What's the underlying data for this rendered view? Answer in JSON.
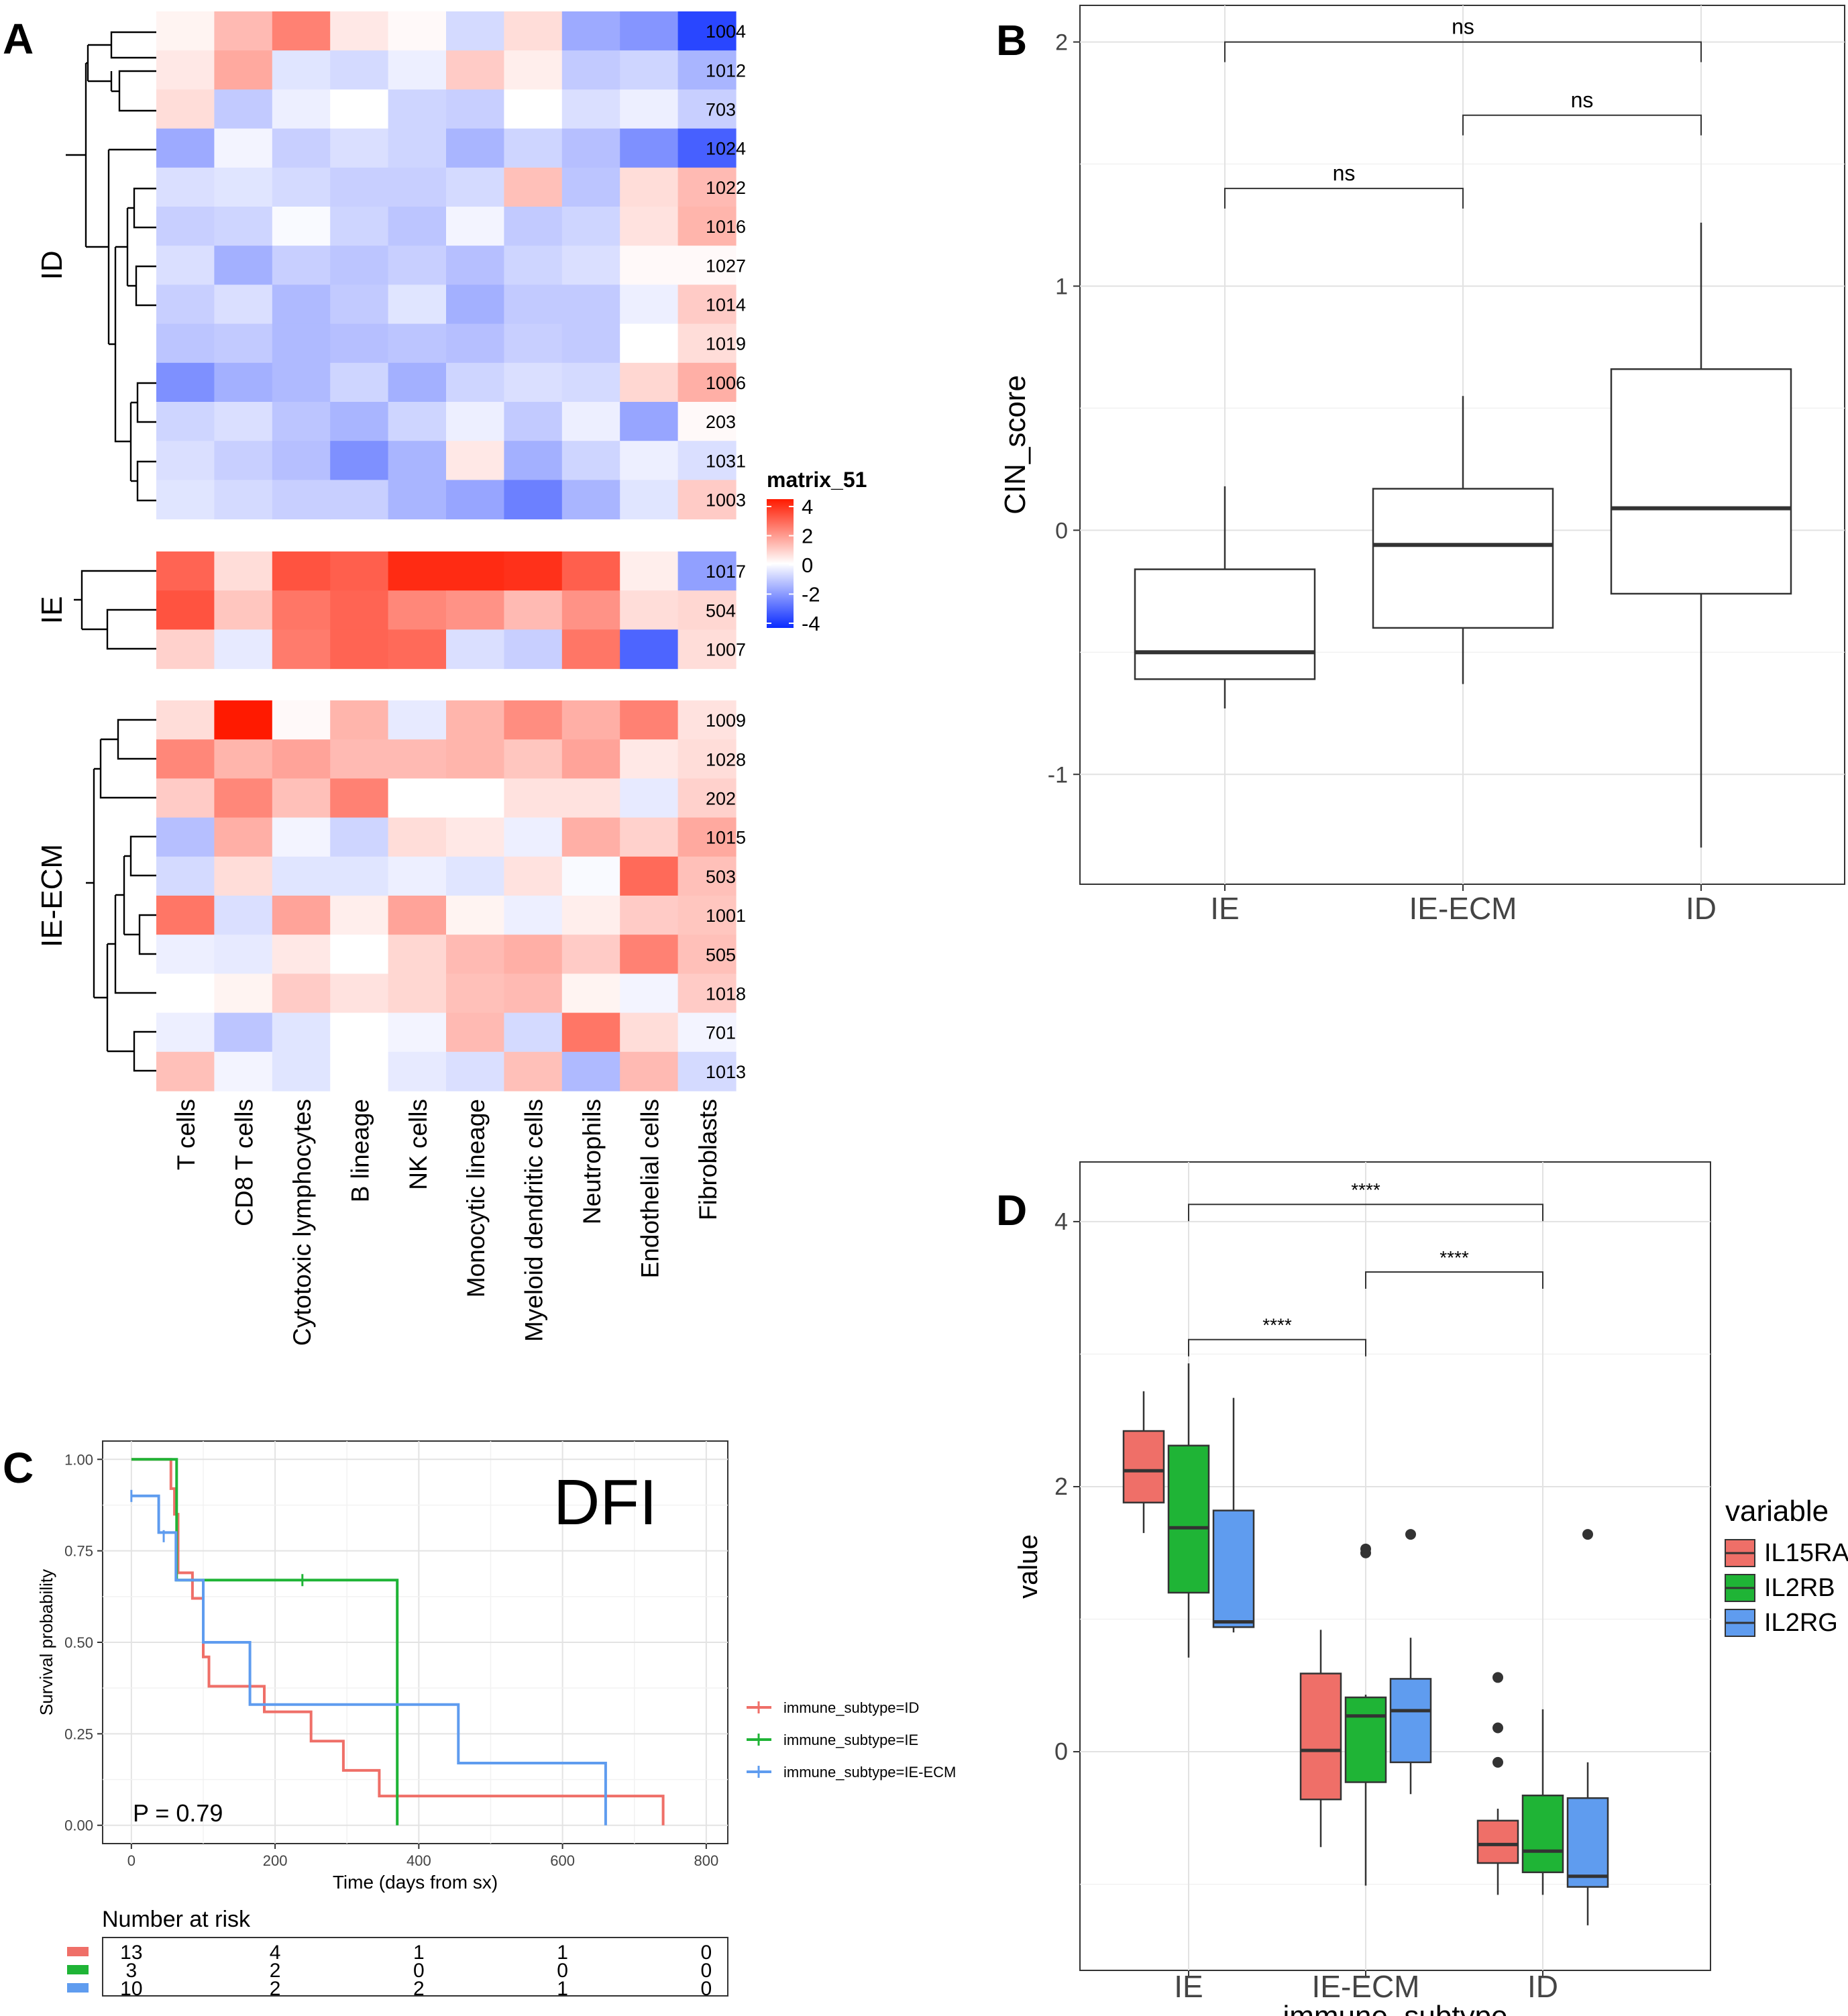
{
  "panel_labels": {
    "a": "A",
    "b": "B",
    "c": "C",
    "d": "D"
  },
  "chart_data": [
    {
      "panel": "A",
      "type": "heatmap",
      "legend_title": "matrix_51",
      "legend_ticks": [
        "4",
        "2",
        "0",
        "-2",
        "-4"
      ],
      "value_range": [
        -4,
        4
      ],
      "columns": [
        "T cells",
        "CD8 T cells",
        "Cytotoxic lymphocytes",
        "B lineage",
        "NK cells",
        "Monocytic lineage",
        "Myeloid dendritic cells",
        "Neutrophils",
        "Endothelial cells",
        "Fibroblasts"
      ],
      "groups": [
        {
          "name": "ID",
          "rows": [
            "1004",
            "1012",
            "703",
            "1024",
            "1022",
            "1016",
            "1027",
            "1014",
            "1019",
            "1006",
            "203",
            "1031",
            "1003"
          ],
          "values": [
            [
              0.2,
              1.2,
              2.2,
              0.4,
              0.1,
              -0.7,
              0.6,
              -1.6,
              -2.0,
              -3.5
            ],
            [
              0.4,
              1.5,
              -0.5,
              -0.7,
              -0.3,
              0.9,
              0.3,
              -1.0,
              -0.8,
              -1.4
            ],
            [
              0.6,
              -1.0,
              -0.3,
              0.0,
              -0.8,
              -0.9,
              0.0,
              -0.6,
              -0.3,
              -0.9
            ],
            [
              -1.6,
              -0.2,
              -0.9,
              -0.6,
              -0.8,
              -1.4,
              -0.8,
              -1.2,
              -2.1,
              -3.0
            ],
            [
              -0.6,
              -0.5,
              -0.7,
              -0.9,
              -0.9,
              -0.7,
              1.1,
              -1.1,
              0.6,
              1.2
            ],
            [
              -0.9,
              -0.8,
              -0.1,
              -0.8,
              -1.1,
              -0.2,
              -1.0,
              -0.8,
              0.5,
              1.3
            ],
            [
              -0.6,
              -1.5,
              -0.9,
              -1.1,
              -0.9,
              -1.2,
              -0.8,
              -0.6,
              0.1,
              0.1
            ],
            [
              -0.9,
              -0.6,
              -1.3,
              -1.0,
              -0.5,
              -1.5,
              -1.0,
              -1.0,
              -0.3,
              0.9
            ],
            [
              -1.1,
              -1.0,
              -1.3,
              -1.2,
              -1.1,
              -1.2,
              -0.9,
              -1.0,
              0.0,
              0.6
            ],
            [
              -2.1,
              -1.5,
              -1.3,
              -0.8,
              -1.5,
              -0.8,
              -0.6,
              -0.7,
              0.7,
              1.4
            ],
            [
              -0.8,
              -0.6,
              -1.1,
              -1.4,
              -0.8,
              -0.3,
              -1.0,
              -0.3,
              -1.7,
              0.1
            ],
            [
              -0.6,
              -0.9,
              -1.2,
              -2.1,
              -1.4,
              0.4,
              -1.5,
              -0.8,
              -0.3,
              -0.6
            ],
            [
              -0.5,
              -0.7,
              -0.9,
              -0.9,
              -1.4,
              -1.7,
              -2.4,
              -1.4,
              -0.5,
              0.9
            ]
          ]
        },
        {
          "name": "IE",
          "rows": [
            "1017",
            "504",
            "1007"
          ],
          "values": [
            [
              2.7,
              0.6,
              3.0,
              2.8,
              3.7,
              3.7,
              3.6,
              2.8,
              0.3,
              -1.8
            ],
            [
              3.0,
              1.0,
              2.4,
              2.7,
              2.1,
              1.9,
              1.2,
              1.9,
              0.6,
              0.7
            ],
            [
              0.8,
              -0.4,
              2.3,
              2.7,
              2.6,
              -0.6,
              -0.9,
              2.4,
              -2.9,
              0.6
            ]
          ]
        },
        {
          "name": "IE-ECM",
          "rows": [
            "1009",
            "1028",
            "202",
            "1015",
            "503",
            "1001",
            "505",
            "1018",
            "701",
            "1013"
          ],
          "values": [
            [
              0.6,
              4.0,
              0.1,
              1.3,
              -0.4,
              1.3,
              2.0,
              1.4,
              2.2,
              0.5
            ],
            [
              2.1,
              1.3,
              1.6,
              1.2,
              1.2,
              1.3,
              1.0,
              1.6,
              0.4,
              0.6
            ],
            [
              0.9,
              2.1,
              1.1,
              2.2,
              0.0,
              0.0,
              0.5,
              0.5,
              -0.4,
              0.8
            ],
            [
              -1.2,
              1.4,
              -0.2,
              -0.8,
              0.6,
              0.4,
              -0.3,
              1.4,
              0.8,
              1.5
            ],
            [
              -0.7,
              0.6,
              -0.5,
              -0.5,
              -0.3,
              -0.5,
              0.5,
              -0.1,
              2.6,
              1.1
            ],
            [
              2.4,
              -0.6,
              1.6,
              0.3,
              1.6,
              0.2,
              -0.3,
              0.3,
              0.9,
              1.0
            ],
            [
              -0.3,
              -0.4,
              0.4,
              0.0,
              0.7,
              1.2,
              1.4,
              0.9,
              2.2,
              1.1
            ],
            [
              0.0,
              0.2,
              0.9,
              0.5,
              0.7,
              1.1,
              1.2,
              0.2,
              -0.2,
              0.9
            ],
            [
              -0.3,
              -1.1,
              -0.5,
              0.0,
              -0.2,
              1.2,
              -0.7,
              2.4,
              0.6,
              -0.2
            ],
            [
              1.1,
              -0.2,
              -0.5,
              0.0,
              -0.4,
              -0.6,
              1.1,
              -1.3,
              1.2,
              -0.7
            ]
          ]
        }
      ]
    },
    {
      "panel": "B",
      "type": "box",
      "ylabel": "CIN_score",
      "ylim": [
        -1.45,
        2.15
      ],
      "yticks": [
        -1,
        0,
        1,
        2
      ],
      "categories": [
        "IE",
        "IE-ECM",
        "ID"
      ],
      "boxes": [
        {
          "name": "IE",
          "min": -0.73,
          "q1": -0.61,
          "median": -0.5,
          "q3": -0.16,
          "max": 0.18
        },
        {
          "name": "IE-ECM",
          "min": -0.63,
          "q1": -0.4,
          "median": -0.06,
          "q3": 0.17,
          "max": 0.55
        },
        {
          "name": "ID",
          "min": -1.3,
          "q1": -0.26,
          "median": 0.09,
          "q3": 0.66,
          "max": 1.26
        }
      ],
      "comparisons": [
        {
          "from": "IE",
          "to": "ID",
          "label": "ns",
          "y": 2.0
        },
        {
          "from": "IE-ECM",
          "to": "ID",
          "label": "ns",
          "y": 1.7
        },
        {
          "from": "IE",
          "to": "IE-ECM",
          "label": "ns",
          "y": 1.4
        }
      ]
    },
    {
      "panel": "C",
      "type": "line",
      "subtype": "kaplan-meier",
      "title": "DFI",
      "xlabel": "Time (days from sx)",
      "ylabel": "Survival probability",
      "xlim": [
        -40,
        830
      ],
      "ylim": [
        -0.05,
        1.05
      ],
      "xticks": [
        0,
        200,
        400,
        600,
        800
      ],
      "yticks": [
        "0.00",
        "0.25",
        "0.50",
        "0.75",
        "1.00"
      ],
      "pvalue": "P = 0.79",
      "series": [
        {
          "name": "immune_subtype=ID",
          "color": "#ef6f68",
          "points": [
            [
              0,
              1.0
            ],
            [
              55,
              1.0
            ],
            [
              55,
              0.92
            ],
            [
              60,
              0.92
            ],
            [
              60,
              0.85
            ],
            [
              65,
              0.85
            ],
            [
              65,
              0.69
            ],
            [
              85,
              0.69
            ],
            [
              85,
              0.62
            ],
            [
              100,
              0.62
            ],
            [
              100,
              0.46
            ],
            [
              108,
              0.46
            ],
            [
              108,
              0.38
            ],
            [
              185,
              0.38
            ],
            [
              185,
              0.31
            ],
            [
              250,
              0.31
            ],
            [
              250,
              0.23
            ],
            [
              295,
              0.23
            ],
            [
              295,
              0.15
            ],
            [
              345,
              0.15
            ],
            [
              345,
              0.08
            ],
            [
              740,
              0.08
            ],
            [
              740,
              0.0
            ]
          ],
          "censor": []
        },
        {
          "name": "immune_subtype=IE",
          "color": "#1fb436",
          "points": [
            [
              0,
              1.0
            ],
            [
              63,
              1.0
            ],
            [
              63,
              0.67
            ],
            [
              370,
              0.67
            ],
            [
              370,
              0.0
            ]
          ],
          "censor": [
            [
              238,
              0.67
            ]
          ]
        },
        {
          "name": "immune_subtype=IE-ECM",
          "color": "#5f9cef",
          "points": [
            [
              0,
              0.9
            ],
            [
              38,
              0.9
            ],
            [
              38,
              0.8
            ],
            [
              62,
              0.8
            ],
            [
              62,
              0.67
            ],
            [
              100,
              0.67
            ],
            [
              100,
              0.5
            ],
            [
              165,
              0.5
            ],
            [
              165,
              0.33
            ],
            [
              455,
              0.33
            ],
            [
              455,
              0.17
            ],
            [
              660,
              0.17
            ],
            [
              660,
              0.0
            ]
          ],
          "censor": [
            [
              0,
              0.9
            ],
            [
              45,
              0.79
            ]
          ]
        }
      ],
      "risk_table": {
        "title": "Number at risk",
        "times": [
          0,
          200,
          400,
          600,
          800
        ],
        "rows": [
          {
            "color": "#ef6f68",
            "values": [
              "13",
              "4",
              "1",
              "1",
              "0"
            ]
          },
          {
            "color": "#1fb436",
            "values": [
              "3",
              "2",
              "0",
              "0",
              "0"
            ]
          },
          {
            "color": "#5f9cef",
            "values": [
              "10",
              "2",
              "2",
              "1",
              "0"
            ]
          }
        ]
      }
    },
    {
      "panel": "D",
      "type": "box",
      "ylabel": "value",
      "xlabel": "immune_subtype",
      "ylim": [
        -1.65,
        4.45
      ],
      "yticks": [
        0,
        2,
        4
      ],
      "categories": [
        "IE",
        "IE-ECM",
        "ID"
      ],
      "legend_title": "variable",
      "series": [
        {
          "name": "IL15RA",
          "color": "#ef6f68",
          "boxes": [
            {
              "min": 1.65,
              "q1": 1.88,
              "median": 2.12,
              "q3": 2.42,
              "max": 2.72,
              "outliers": []
            },
            {
              "min": -0.72,
              "q1": -0.36,
              "median": 0.01,
              "q3": 0.59,
              "max": 0.92,
              "outliers": []
            },
            {
              "min": -1.08,
              "q1": -0.84,
              "median": -0.7,
              "q3": -0.52,
              "max": -0.43,
              "outliers": [
                0.56,
                0.18,
                -0.08
              ]
            }
          ]
        },
        {
          "name": "IL2RB",
          "color": "#1fb436",
          "boxes": [
            {
              "min": 0.71,
              "q1": 1.2,
              "median": 1.69,
              "q3": 2.31,
              "max": 2.93,
              "outliers": []
            },
            {
              "min": -1.01,
              "q1": -0.23,
              "median": 0.27,
              "q3": 0.41,
              "max": 0.43,
              "outliers": [
                1.5,
                1.53
              ]
            },
            {
              "min": -1.08,
              "q1": -0.91,
              "median": -0.75,
              "q3": -0.33,
              "max": 0.32,
              "outliers": []
            }
          ]
        },
        {
          "name": "IL2RG",
          "color": "#5f9cef",
          "boxes": [
            {
              "min": 0.9,
              "q1": 0.94,
              "median": 0.98,
              "q3": 1.82,
              "max": 2.67,
              "outliers": []
            },
            {
              "min": -0.32,
              "q1": -0.08,
              "median": 0.31,
              "q3": 0.55,
              "max": 0.86,
              "outliers": [
                1.64
              ]
            },
            {
              "min": -1.31,
              "q1": -1.02,
              "median": -0.94,
              "q3": -0.35,
              "max": -0.08,
              "outliers": [
                1.64
              ]
            }
          ]
        }
      ],
      "comparisons": [
        {
          "from": "IE",
          "to": "ID",
          "label": "****",
          "y": 4.13
        },
        {
          "from": "IE-ECM",
          "to": "ID",
          "label": "****",
          "y": 3.62
        },
        {
          "from": "IE",
          "to": "IE-ECM",
          "label": "****",
          "y": 3.11
        }
      ]
    }
  ]
}
